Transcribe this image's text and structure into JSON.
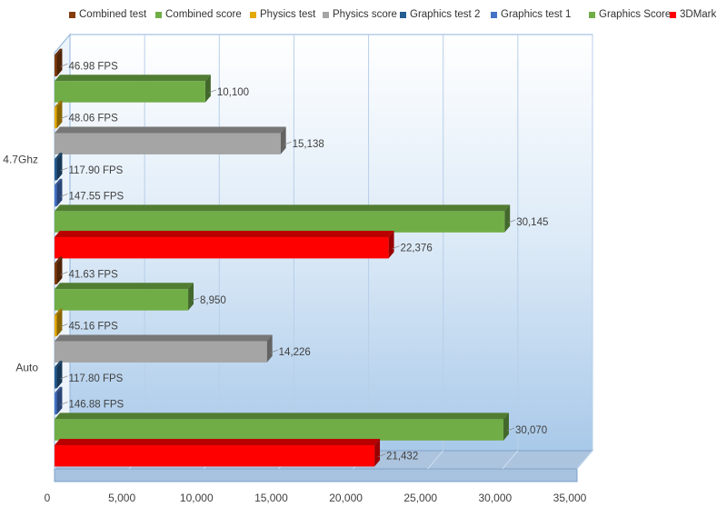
{
  "chart_data": {
    "type": "bar",
    "orientation": "horizontal",
    "style": "3d",
    "categories": [
      "4.7Ghz",
      "Auto"
    ],
    "legend_position": "top",
    "xlim": [
      0,
      35000
    ],
    "x_ticks": [
      "0",
      "5,000",
      "10,000",
      "15,000",
      "20,000",
      "25,000",
      "30,000",
      "35,000"
    ],
    "grid": true,
    "series": [
      {
        "name": "Combined test",
        "color": "#843C0C",
        "values": [
          46.98,
          41.63
        ],
        "labels": [
          "46.98 FPS",
          "41.63 FPS"
        ]
      },
      {
        "name": "Combined score",
        "color": "#70AD47",
        "values": [
          10100,
          8950
        ],
        "labels": [
          "10,100",
          "8,950"
        ]
      },
      {
        "name": "Physics test",
        "color": "#E3A900",
        "values": [
          48.06,
          45.16
        ],
        "labels": [
          "48.06 FPS",
          "45.16 FPS"
        ]
      },
      {
        "name": "Physics score",
        "color": "#A5A5A5",
        "values": [
          15138,
          14226
        ],
        "labels": [
          "15,138",
          "14,226"
        ]
      },
      {
        "name": "Graphics test 2",
        "color": "#255E91",
        "values": [
          117.9,
          117.8
        ],
        "labels": [
          "117.90 FPS",
          "117.80 FPS"
        ]
      },
      {
        "name": "Graphics test 1",
        "color": "#4472C4",
        "values": [
          147.55,
          146.88
        ],
        "labels": [
          "147.55 FPS",
          "146.88 FPS"
        ]
      },
      {
        "name": "Graphics Score",
        "color": "#70AD47",
        "values": [
          30145,
          30070
        ],
        "labels": [
          "30,145",
          "30,070"
        ]
      },
      {
        "name": "3DMark",
        "color": "#FF0000",
        "values": [
          22376,
          21432
        ],
        "labels": [
          "22,376",
          "21,432"
        ]
      }
    ]
  }
}
